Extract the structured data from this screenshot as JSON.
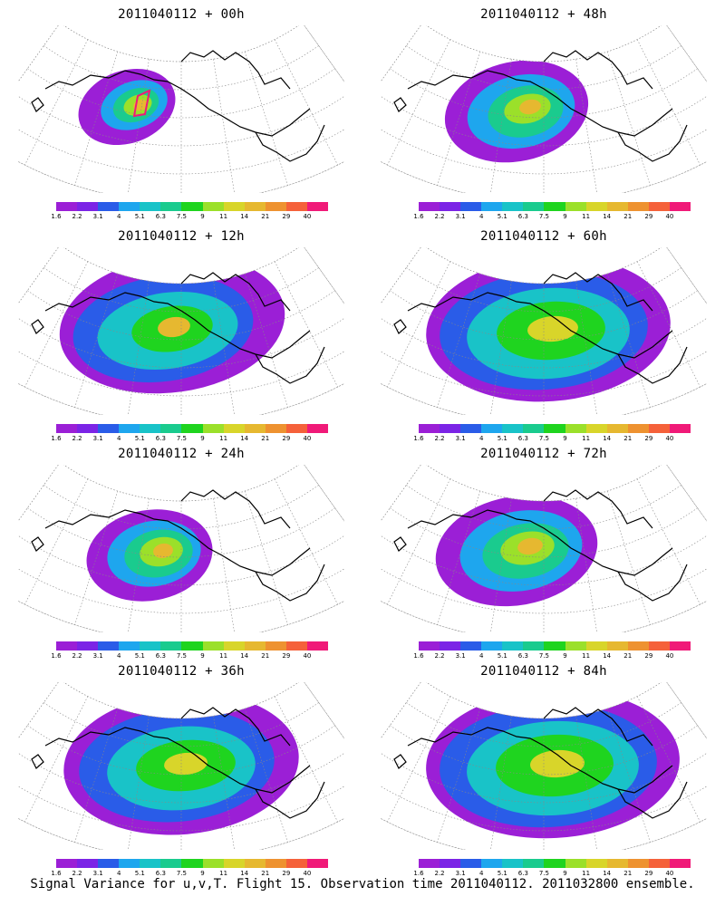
{
  "panels": [
    {
      "title": "2011040112 + 00h"
    },
    {
      "title": "2011040112 + 48h"
    },
    {
      "title": "2011040112 + 12h"
    },
    {
      "title": "2011040112 + 60h"
    },
    {
      "title": "2011040112 + 24h"
    },
    {
      "title": "2011040112 + 72h"
    },
    {
      "title": "2011040112 + 36h"
    },
    {
      "title": "2011040112 + 84h"
    }
  ],
  "colorbar": {
    "labels": [
      "1.6",
      "2.2",
      "3.1",
      "4",
      "5.1",
      "6.3",
      "7.5",
      "9",
      "11",
      "14",
      "21",
      "29",
      "40"
    ],
    "colors": [
      "#9b1fd6",
      "#7b24e6",
      "#2a5ce8",
      "#1ea6ee",
      "#19c3c8",
      "#1acb8e",
      "#1fd41f",
      "#9be02a",
      "#d8d52a",
      "#e6b830",
      "#ee9230",
      "#f5613a",
      "#f01a78"
    ]
  },
  "footer": "Signal Variance for u,v,T. Flight 15. Observation time 2011040112. 2011032800 ensemble."
}
